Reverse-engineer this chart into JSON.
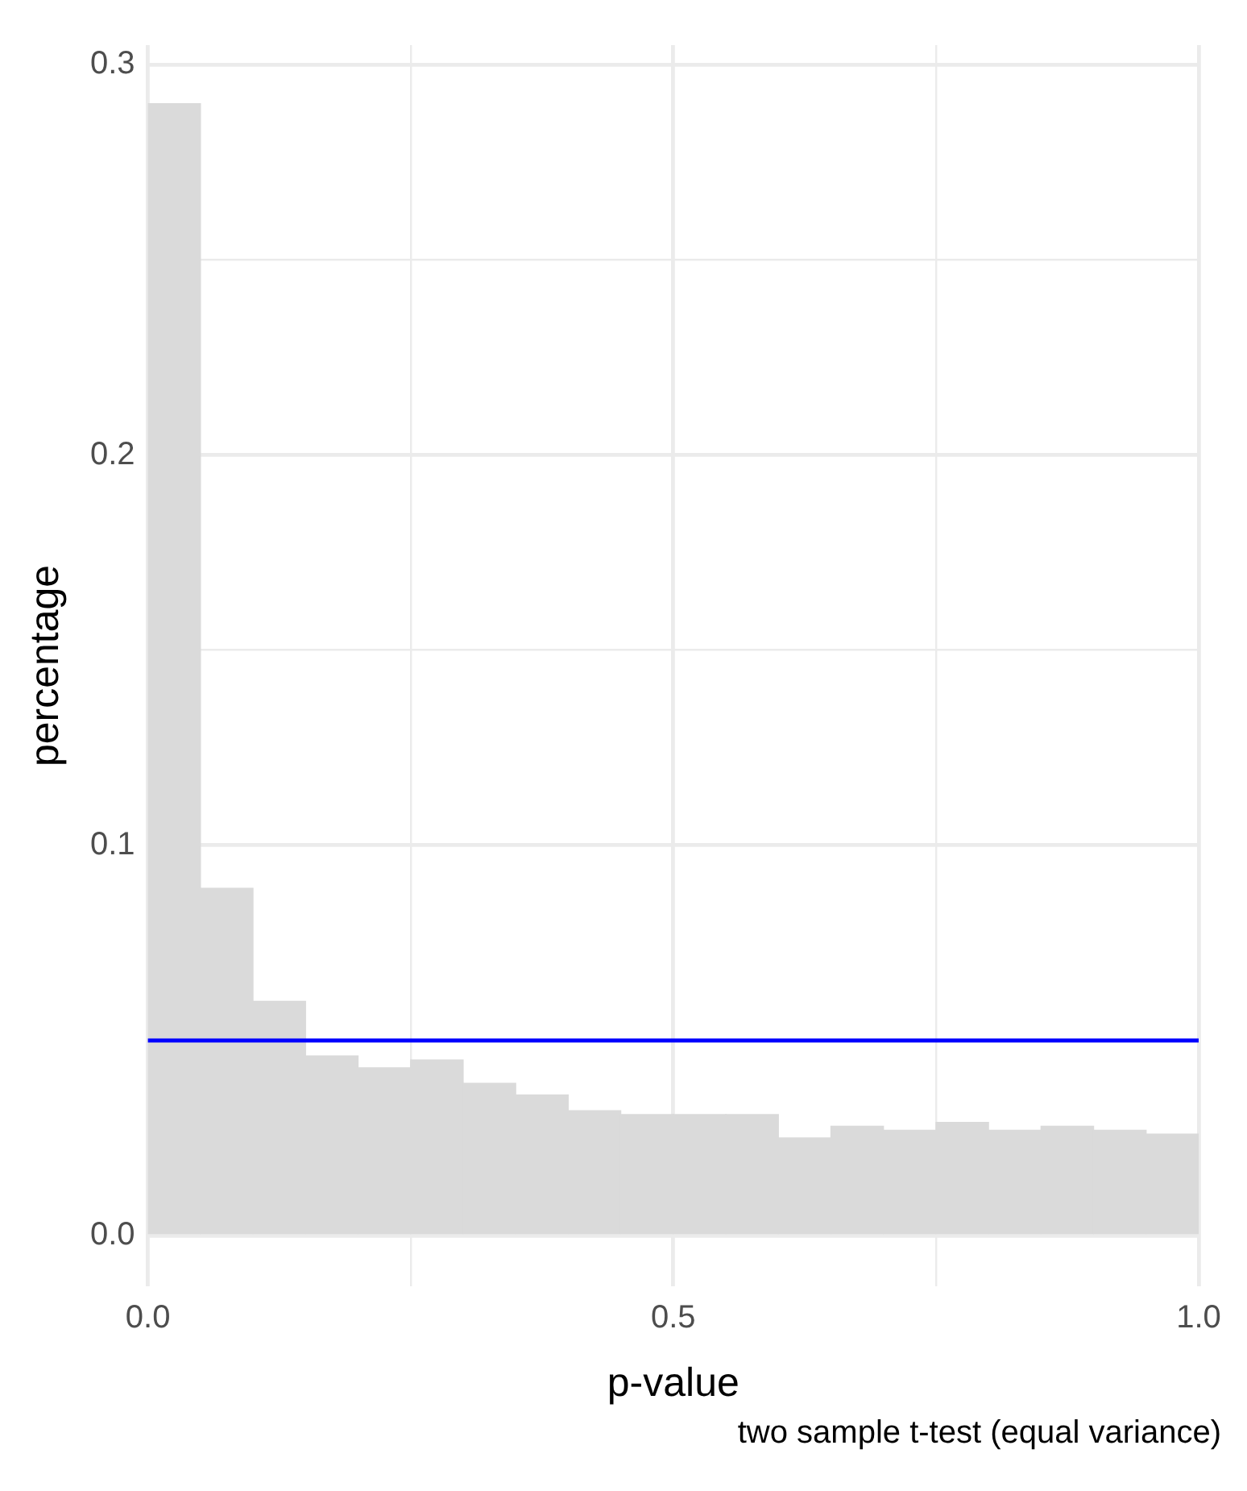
{
  "chart_data": {
    "type": "histogram",
    "xlabel": "p-value",
    "ylabel": "percentage",
    "bins": [
      0,
      0.05,
      0.1,
      0.15,
      0.2,
      0.25,
      0.3,
      0.35,
      0.4,
      0.45,
      0.5,
      0.55,
      0.6,
      0.65,
      0.7,
      0.75,
      0.8,
      0.85,
      0.9,
      0.95,
      1.0
    ],
    "values": [
      0.29,
      0.089,
      0.06,
      0.046,
      0.043,
      0.045,
      0.039,
      0.036,
      0.032,
      0.031,
      0.031,
      0.031,
      0.025,
      0.028,
      0.027,
      0.029,
      0.027,
      0.028,
      0.027,
      0.026
    ],
    "color": "#dadada",
    "xlim": [
      0,
      1
    ],
    "ylim": [
      -0.013,
      0.305
    ],
    "xticks": [
      {
        "value": 0,
        "label": "0.0"
      },
      {
        "value": 0.25,
        "label": null
      },
      {
        "value": 0.5,
        "label": "0.5"
      },
      {
        "value": 0.75,
        "label": null
      },
      {
        "value": 1,
        "label": "1.0"
      }
    ],
    "yticks": [
      {
        "value": 0,
        "label": "0.0"
      },
      {
        "value": 0.05,
        "label": null
      },
      {
        "value": 0.1,
        "label": "0.1"
      },
      {
        "value": 0.15,
        "label": null
      },
      {
        "value": 0.2,
        "label": "0.2"
      },
      {
        "value": 0.25,
        "label": null
      },
      {
        "value": 0.3,
        "label": "0.3"
      }
    ],
    "ref_lines": [
      {
        "axis": "y",
        "value": 0.05,
        "color": "#0000ff",
        "line_style": "solid"
      }
    ],
    "grid": true,
    "legend": false,
    "annotations": [
      "two sample t-test (equal variance)"
    ]
  }
}
